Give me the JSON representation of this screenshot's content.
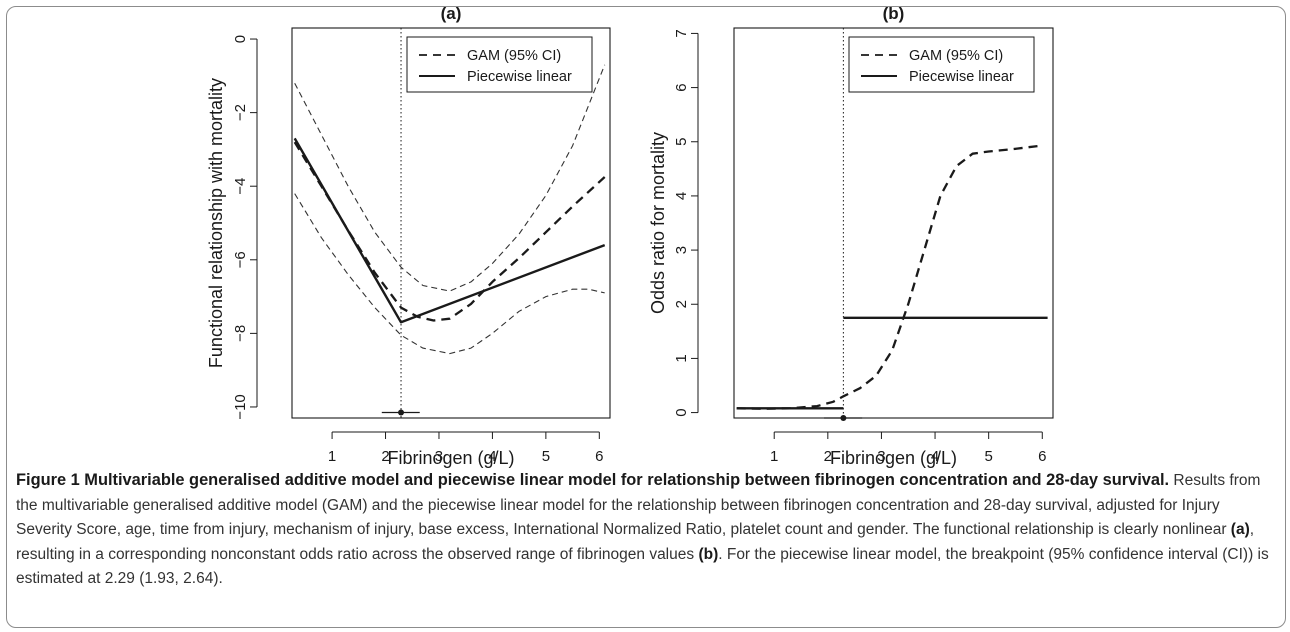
{
  "chart_data": [
    {
      "type": "line",
      "title": "(a)",
      "xlabel": "Fibrinogen (g/L)",
      "ylabel": "Functional  relationship with mortality",
      "xlim": [
        0.25,
        6.2
      ],
      "ylim": [
        -10.3,
        0.3
      ],
      "xticks": [
        1,
        2,
        3,
        4,
        5,
        6
      ],
      "yticks": [
        0,
        -2,
        -4,
        -6,
        -8,
        -10
      ],
      "legend_position": "top-right",
      "legend": [
        "GAM (95% CI)",
        "Piecewise linear"
      ],
      "series": [
        {
          "name": "GAM (95% CI)",
          "style": "dashed-bold",
          "x": [
            0.3,
            0.8,
            1.3,
            1.8,
            2.29,
            2.6,
            2.9,
            3.2,
            3.6,
            4.0,
            4.5,
            5.0,
            5.5,
            6.1
          ],
          "y": [
            -2.8,
            -4.0,
            -5.2,
            -6.35,
            -7.3,
            -7.55,
            -7.65,
            -7.6,
            -7.2,
            -6.6,
            -5.95,
            -5.25,
            -4.55,
            -3.75
          ]
        },
        {
          "name": "GAM 95% CI upper",
          "style": "dashed-thin",
          "x": [
            0.3,
            0.8,
            1.3,
            1.8,
            2.29,
            2.7,
            3.2,
            3.6,
            4.0,
            4.5,
            5.0,
            5.5,
            6.1
          ],
          "y": [
            -1.2,
            -2.6,
            -4.0,
            -5.25,
            -6.2,
            -6.7,
            -6.85,
            -6.6,
            -6.1,
            -5.3,
            -4.25,
            -2.9,
            -0.7
          ]
        },
        {
          "name": "GAM 95% CI lower",
          "style": "dashed-thin",
          "x": [
            0.3,
            0.8,
            1.3,
            1.8,
            2.29,
            2.7,
            3.2,
            3.6,
            4.0,
            4.5,
            5.0,
            5.5,
            5.8,
            6.1
          ],
          "y": [
            -4.2,
            -5.4,
            -6.4,
            -7.3,
            -8.05,
            -8.4,
            -8.55,
            -8.4,
            -8.0,
            -7.4,
            -7.0,
            -6.8,
            -6.8,
            -6.9
          ]
        },
        {
          "name": "Piecewise linear",
          "style": "solid",
          "x": [
            0.3,
            2.29,
            6.1
          ],
          "y": [
            -2.7,
            -7.7,
            -5.6
          ]
        }
      ],
      "breakpoint": {
        "x": 2.29,
        "ci": [
          1.93,
          2.64
        ],
        "y": -10.15
      }
    },
    {
      "type": "line",
      "title": "(b)",
      "xlabel": "Fibrinogen (g/L)",
      "ylabel": "Odds ratio for mortality",
      "xlim": [
        0.25,
        6.2
      ],
      "ylim": [
        -0.1,
        7.1
      ],
      "xticks": [
        1,
        2,
        3,
        4,
        5,
        6
      ],
      "yticks": [
        0,
        1,
        2,
        3,
        4,
        5,
        6,
        7
      ],
      "legend_position": "top-right",
      "legend": [
        "GAM (95% CI)",
        "Piecewise linear"
      ],
      "series": [
        {
          "name": "GAM (95% CI)",
          "style": "dashed-bold",
          "x": [
            0.3,
            0.8,
            1.3,
            1.8,
            2.1,
            2.29,
            2.6,
            2.9,
            3.2,
            3.5,
            3.8,
            4.1,
            4.4,
            4.7,
            5.0,
            5.5,
            6.0
          ],
          "y": [
            0.08,
            0.07,
            0.08,
            0.12,
            0.2,
            0.3,
            0.45,
            0.68,
            1.15,
            2.0,
            3.0,
            4.0,
            4.55,
            4.78,
            4.82,
            4.87,
            4.93
          ]
        },
        {
          "name": "Piecewise linear",
          "style": "solid",
          "segments": [
            {
              "x": [
                0.3,
                2.29
              ],
              "y": [
                0.08,
                0.08
              ]
            },
            {
              "x": [
                2.29,
                6.1
              ],
              "y": [
                1.75,
                1.75
              ]
            }
          ]
        }
      ],
      "breakpoint": {
        "x": 2.29,
        "ci": [
          1.93,
          2.64
        ],
        "y": -0.1
      }
    }
  ],
  "caption": {
    "title": "Figure 1 Multivariable generalised additive model and piecewise linear model for relationship between fibrinogen concentration and 28-day survival.",
    "body_1": " Results from the multivariable generalised additive model (GAM) and the piecewise linear model for the relationship between fibrinogen concentration and 28-day survival, adjusted for Injury Severity Score, age, time from injury, mechanism of injury, base excess, International Normalized Ratio, platelet count and gender. The functional relationship is clearly nonlinear ",
    "ref_a": "(a)",
    "body_2": ", resulting in a corresponding nonconstant odds ratio across the observed range of fibrinogen values ",
    "ref_b": "(b)",
    "body_3": ". For the piecewise linear model, the breakpoint (95% confidence interval (CI)) is estimated at 2.29 (1.93, 2.64)."
  }
}
